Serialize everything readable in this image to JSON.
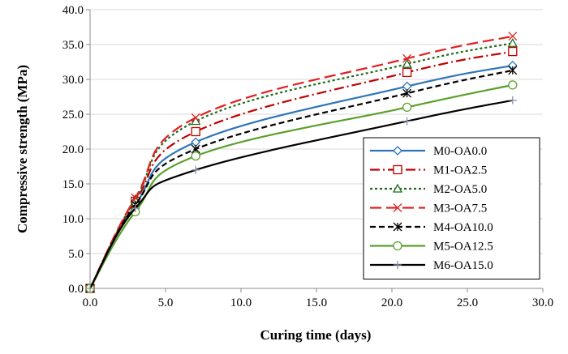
{
  "chart_data": {
    "type": "line",
    "xlabel": "Curing time (days)",
    "ylabel": "Compressive strength (MPa)",
    "xlim": [
      0,
      30
    ],
    "ylim": [
      0,
      40
    ],
    "xticks": [
      "0.0",
      "5.0",
      "10.0",
      "15.0",
      "20.0",
      "25.0",
      "30.0"
    ],
    "yticks": [
      "0.0",
      "5.0",
      "10.0",
      "15.0",
      "20.0",
      "25.0",
      "30.0",
      "35.0",
      "40.0"
    ],
    "grid": "horizontal",
    "legend_position": "bottom-right",
    "x": [
      0,
      3,
      7,
      21,
      28
    ],
    "series": [
      {
        "name": "M0-OA0.0",
        "values": [
          0,
          12.0,
          21.0,
          29.0,
          32.0
        ],
        "color": "#2e75b6",
        "dash": "solid",
        "marker": "diamond"
      },
      {
        "name": "M1-OA2.5",
        "values": [
          0,
          12.5,
          22.5,
          31.0,
          34.0
        ],
        "color": "#c00000",
        "dash": "dashdot",
        "marker": "square"
      },
      {
        "name": "M2-OA5.0",
        "values": [
          0,
          12.8,
          24.0,
          32.2,
          35.2
        ],
        "color": "#1e6b1e",
        "dash": "dotted",
        "marker": "triangle"
      },
      {
        "name": "M3-OA7.5",
        "values": [
          0,
          13.0,
          24.5,
          33.0,
          36.2
        ],
        "color": "#e02020",
        "dash": "longdash",
        "marker": "x"
      },
      {
        "name": "M4-OA10.0",
        "values": [
          0,
          12.0,
          20.0,
          28.0,
          31.3
        ],
        "color": "#000000",
        "dash": "dashed",
        "marker": "star"
      },
      {
        "name": "M5-OA12.5",
        "values": [
          0,
          11.0,
          19.0,
          26.0,
          29.2
        ],
        "color": "#5aa02c",
        "dash": "solid",
        "marker": "circle"
      },
      {
        "name": "M6-OA15.0",
        "values": [
          0,
          11.5,
          17.0,
          24.0,
          27.0
        ],
        "color": "#000000",
        "dash": "solid",
        "marker": "plus"
      }
    ]
  }
}
